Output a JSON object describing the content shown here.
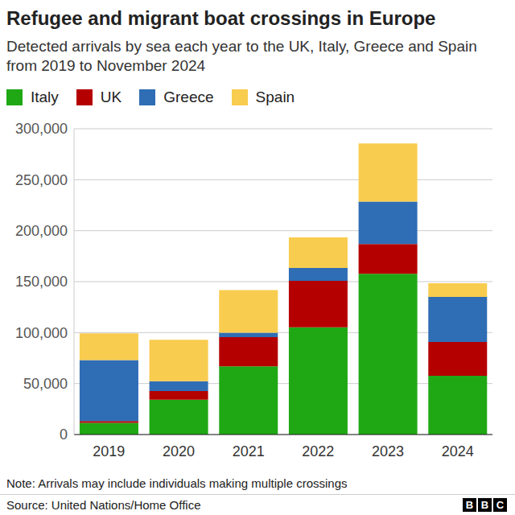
{
  "chart_data": {
    "type": "bar",
    "title": "Refugee and migrant boat crossings in Europe",
    "subtitle": "Detected arrivals by sea each year to the UK, Italy, Greece and Spain from 2019 to November 2024",
    "note": "Note: Arrivals may include individuals making multiple crossings",
    "source": "Source: United Nations/Home Office",
    "logo": "BBC",
    "stacked": true,
    "grid": true,
    "legend": "top left",
    "categories": [
      "2019",
      "2020",
      "2021",
      "2022",
      "2023",
      "2024"
    ],
    "series": [
      {
        "name": "Italy",
        "color": "#1fa814",
        "values": [
          11500,
          34200,
          67000,
          105100,
          157600,
          57600
        ]
      },
      {
        "name": "UK",
        "color": "#b50000",
        "values": [
          1800,
          8500,
          28500,
          45700,
          29400,
          33200
        ]
      },
      {
        "name": "Greece",
        "color": "#2f6db5",
        "values": [
          59700,
          9700,
          4300,
          12700,
          41600,
          44200
        ]
      },
      {
        "name": "Spain",
        "color": "#f8cc4e",
        "values": [
          26200,
          40500,
          41900,
          29900,
          56900,
          13400
        ]
      }
    ],
    "ylim": [
      0,
      300000
    ],
    "yticks": [
      0,
      {
        "value": 50000,
        "label": "50,000"
      },
      {
        "value": 100000,
        "label": "100,000"
      },
      {
        "value": 150000,
        "label": "150,000"
      },
      {
        "value": 200000,
        "label": "200,000"
      },
      {
        "value": 250000,
        "label": "250,000"
      },
      {
        "value": 300000,
        "label": "300,000"
      }
    ]
  }
}
